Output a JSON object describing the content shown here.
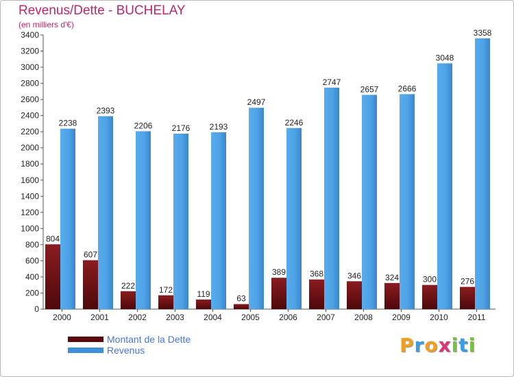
{
  "title": "Revenus/Dette - BUCHELAY",
  "subtitle": "(en milliers d'€)",
  "chart_data": {
    "type": "bar",
    "title": "Revenus/Dette - BUCHELAY",
    "ylabel": "(en milliers d'€)",
    "xlabel": "",
    "categories": [
      "2000",
      "2001",
      "2002",
      "2003",
      "2004",
      "2005",
      "2006",
      "2007",
      "2008",
      "2009",
      "2010",
      "2011"
    ],
    "ylim": [
      0,
      3400
    ],
    "yticks": [
      0,
      200,
      400,
      600,
      800,
      1000,
      1200,
      1400,
      1600,
      1800,
      2000,
      2200,
      2400,
      2600,
      2800,
      3000,
      3200,
      3400
    ],
    "grid": false,
    "series": [
      {
        "name": "Montant de la Dette",
        "color": "#7a1216",
        "values": [
          804,
          607,
          222,
          172,
          119,
          63,
          389,
          368,
          346,
          324,
          300,
          276
        ]
      },
      {
        "name": "Revenus",
        "color": "#4ea3e6",
        "values": [
          2238,
          2393,
          2206,
          2176,
          2193,
          2497,
          2246,
          2747,
          2657,
          2666,
          3048,
          3358
        ]
      }
    ]
  },
  "legend": [
    {
      "label": "Montant de la Dette",
      "color": "#5a0a0c"
    },
    {
      "label": "Revenus",
      "color": "#3d8fd9"
    }
  ],
  "logo": {
    "letters": [
      {
        "ch": "P",
        "color": "#f0a020"
      },
      {
        "ch": "r",
        "color": "#3a9ee0"
      },
      {
        "ch": "o",
        "color": "#f0a020"
      },
      {
        "ch": "x",
        "color": "#d8357a"
      },
      {
        "ch": "i",
        "color": "#7ac043"
      },
      {
        "ch": "t",
        "color": "#3a9ee0"
      },
      {
        "ch": "i",
        "color": "#7ac043"
      }
    ]
  }
}
